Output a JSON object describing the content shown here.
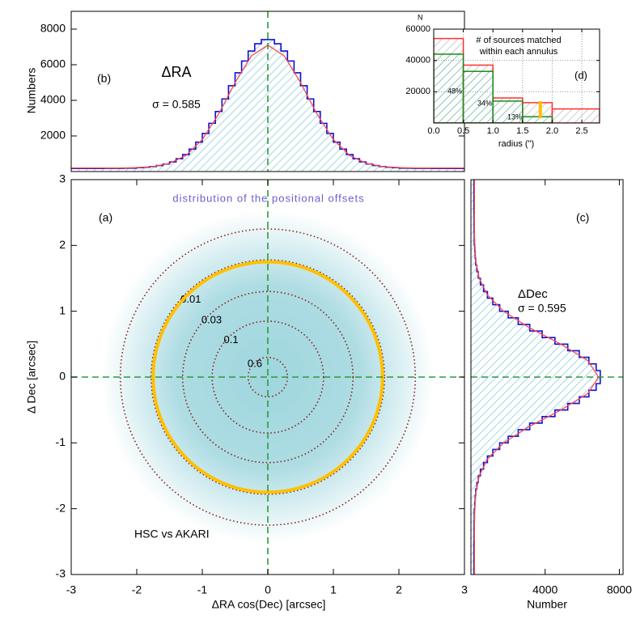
{
  "chart_data": [
    {
      "type": "scatter",
      "label": "(a)",
      "subtitle": "distribution of the positional offsets",
      "annotation": "HSC vs AKARI",
      "xlabel": "ΔRA cos(Dec) [arcsec]",
      "ylabel": "Δ Dec [arcsec]",
      "xlim": [
        -3,
        3
      ],
      "ylim": [
        -3,
        3
      ],
      "xticks": [
        -3,
        -2,
        -1,
        0,
        1,
        2,
        3
      ],
      "yticks": [
        -3,
        -2,
        -1,
        0,
        1,
        2,
        3
      ],
      "point_color": "#9fd6de",
      "contour_color": "#8b1a1a",
      "contours": [
        {
          "label": "0.6",
          "radius": 0.3
        },
        {
          "label": "0.1",
          "radius": 0.85
        },
        {
          "label": "0.03",
          "radius": 1.3
        },
        {
          "label": "0.01",
          "radius": 1.78
        },
        {
          "radius": 2.25
        }
      ],
      "match_radius": 1.75,
      "match_color": "#ffc000",
      "xline": 0,
      "yline": 0,
      "line_color": "#2e9a3a"
    },
    {
      "type": "histogram",
      "orientation": "vertical",
      "label": "(b)",
      "annotation": "ΔRA",
      "sigma_label": "σ = 0.585",
      "ylabel": "Numbers",
      "xlim": [
        -3,
        3
      ],
      "ylim": [
        0,
        9000
      ],
      "yticks": [
        2000,
        4000,
        6000,
        8000
      ],
      "xline": 0,
      "line_color": "#2e9a3a",
      "color": "#1010d0",
      "hatch_color": "#6fc3d3",
      "bins": [
        -3,
        -2.9,
        -2.8,
        -2.7,
        -2.6,
        -2.5,
        -2.4,
        -2.3,
        -2.2,
        -2.1,
        -2,
        -1.9,
        -1.8,
        -1.7,
        -1.6,
        -1.5,
        -1.4,
        -1.3,
        -1.2,
        -1.1,
        -1,
        -0.9,
        -0.8,
        -0.7,
        -0.6,
        -0.5,
        -0.4,
        -0.3,
        -0.2,
        -0.1,
        0,
        0.1,
        0.2,
        0.3,
        0.4,
        0.5,
        0.6,
        0.7,
        0.8,
        0.9,
        1,
        1.1,
        1.2,
        1.3,
        1.4,
        1.5,
        1.6,
        1.7,
        1.8,
        1.9,
        2,
        2.1,
        2.2,
        2.3,
        2.4,
        2.5,
        2.6,
        2.7,
        2.8,
        2.9,
        3
      ],
      "values": [
        170,
        170,
        170,
        170,
        170,
        180,
        180,
        180,
        190,
        190,
        220,
        240,
        280,
        340,
        420,
        540,
        720,
        950,
        1260,
        1650,
        2140,
        2710,
        3370,
        4080,
        4820,
        5550,
        6210,
        6770,
        7180,
        7410,
        7410,
        7180,
        6770,
        6210,
        5550,
        4820,
        4080,
        3370,
        2710,
        2140,
        1650,
        1260,
        950,
        720,
        540,
        420,
        340,
        280,
        240,
        220,
        190,
        190,
        180,
        180,
        180,
        170,
        170,
        170,
        170,
        170
      ],
      "fit": {
        "color": "#ff4a4a",
        "x": [
          -3,
          -2.75,
          -2.5,
          -2.25,
          -2,
          -1.75,
          -1.5,
          -1.25,
          -1,
          -0.75,
          -0.5,
          -0.25,
          0,
          0.25,
          0.5,
          0.75,
          1,
          1.25,
          1.5,
          1.75,
          2,
          2.25,
          2.5,
          2.75,
          3
        ],
        "values": [
          200,
          200,
          200,
          200,
          220,
          280,
          460,
          900,
          1800,
          3230,
          4990,
          6500,
          7100,
          6500,
          4990,
          3230,
          1800,
          900,
          460,
          280,
          220,
          200,
          200,
          200,
          200
        ]
      }
    },
    {
      "type": "histogram",
      "orientation": "horizontal",
      "label": "(c)",
      "annotation": "ΔDec",
      "sigma_label": "σ = 0.595",
      "xlabel": "Number",
      "xlim": [
        0,
        8200
      ],
      "ylim": [
        -3,
        3
      ],
      "xticks": [
        4000,
        8000
      ],
      "yline": 0,
      "line_color": "#2e9a3a",
      "color": "#1010d0",
      "hatch_color": "#6fc3d3",
      "bins": [
        -3,
        -2.9,
        -2.8,
        -2.7,
        -2.6,
        -2.5,
        -2.4,
        -2.3,
        -2.2,
        -2.1,
        -2,
        -1.9,
        -1.8,
        -1.7,
        -1.6,
        -1.5,
        -1.4,
        -1.3,
        -1.2,
        -1.1,
        -1,
        -0.9,
        -0.8,
        -0.7,
        -0.6,
        -0.5,
        -0.4,
        -0.3,
        -0.2,
        -0.1,
        0,
        0.1,
        0.2,
        0.3,
        0.4,
        0.5,
        0.6,
        0.7,
        0.8,
        0.9,
        1,
        1.1,
        1.2,
        1.3,
        1.4,
        1.5,
        1.6,
        1.7,
        1.8,
        1.9,
        2,
        2.1,
        2.2,
        2.3,
        2.4,
        2.5,
        2.6,
        2.7,
        2.8,
        2.9,
        3
      ],
      "values": [
        160,
        160,
        160,
        160,
        160,
        170,
        170,
        170,
        180,
        180,
        210,
        230,
        260,
        320,
        400,
        510,
        680,
        890,
        1180,
        1550,
        2010,
        2550,
        3170,
        3840,
        4530,
        5220,
        5840,
        6360,
        6750,
        6970,
        6970,
        6750,
        6360,
        5840,
        5220,
        4530,
        3840,
        3170,
        2550,
        2010,
        1550,
        1180,
        890,
        680,
        510,
        400,
        320,
        260,
        230,
        210,
        180,
        180,
        170,
        170,
        170,
        160,
        160,
        160,
        160,
        160
      ],
      "fit": {
        "color": "#ff4a4a",
        "x": [
          -3,
          -2.75,
          -2.5,
          -2.25,
          -2,
          -1.75,
          -1.5,
          -1.25,
          -1,
          -0.75,
          -0.5,
          -0.25,
          0,
          0.25,
          0.5,
          0.75,
          1,
          1.25,
          1.5,
          1.75,
          2,
          2.25,
          2.5,
          2.75,
          3
        ],
        "values": [
          190,
          190,
          190,
          190,
          210,
          270,
          450,
          880,
          1760,
          3150,
          4850,
          6300,
          6880,
          6300,
          4850,
          3150,
          1760,
          880,
          450,
          270,
          210,
          190,
          190,
          190,
          190
        ]
      }
    },
    {
      "type": "histogram",
      "orientation": "vertical",
      "label": "(d)",
      "title": [
        "# of sources matched",
        "within each annulus"
      ],
      "ylabel": "N",
      "xlabel": "radius (\")",
      "xlim": [
        0,
        2.8
      ],
      "ylim": [
        0,
        60000
      ],
      "grid": true,
      "xticks": [
        {
          "value": 0,
          "label": "0.0"
        },
        0.5,
        {
          "value": 1,
          "label": "1.0"
        },
        1.5,
        {
          "value": 2,
          "label": "2.0"
        },
        2.5
      ],
      "yticks": [
        20000,
        40000,
        60000
      ],
      "series": [
        {
          "color": "#ff3030",
          "hatch_color": "#b0b0b0",
          "bins": [
            0,
            0.5,
            1,
            1.5,
            2,
            2.8
          ],
          "values": [
            54000,
            37000,
            16000,
            13000,
            9000
          ]
        },
        {
          "color": "#1a8a1a",
          "hatch_color": "#6fc3b0",
          "bins": [
            0,
            0.5,
            1,
            1.5,
            2
          ],
          "values": [
            44000,
            33000,
            14000,
            4000
          ]
        }
      ],
      "annotations": [
        "48%",
        "34%",
        "13%"
      ],
      "marker": {
        "x": 1.8,
        "y": [
          3000,
          14000
        ],
        "color": "#ffc000"
      }
    }
  ]
}
